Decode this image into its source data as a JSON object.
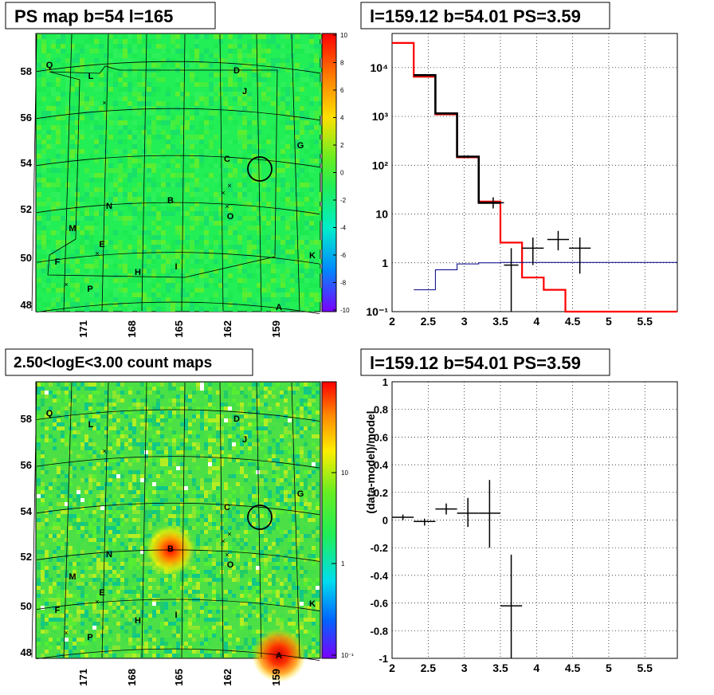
{
  "panels": {
    "ps_map": {
      "title": "PS map b=54 l=165",
      "colorbar": {
        "ticks": [
          "10",
          "8",
          "6",
          "4",
          "2",
          "0",
          "-2",
          "-4",
          "-6",
          "-8",
          "-10"
        ]
      },
      "b_ticks": [
        "58",
        "56",
        "54",
        "52",
        "50",
        "48"
      ],
      "l_ticks": [
        "171",
        "168",
        "165",
        "162",
        "159"
      ]
    },
    "count_map": {
      "title": "2.50<logE<3.00 count maps",
      "colorbar": {
        "ticks": [
          "10",
          "1",
          "10⁻¹"
        ]
      },
      "b_ticks": [
        "58",
        "56",
        "54",
        "52",
        "50",
        "48"
      ],
      "l_ticks": [
        "171",
        "168",
        "165",
        "162",
        "159"
      ]
    },
    "spectrum": {
      "title": "l=159.12 b=54.01 PS=3.59"
    },
    "residual": {
      "title": "l=159.12 b=54.01 PS=3.59"
    }
  },
  "source_labels": [
    "Q",
    "L",
    "D",
    "J",
    "G",
    "C",
    "B",
    "N",
    "O",
    "M",
    "E",
    "F",
    "I",
    "H",
    "K",
    "P",
    "A"
  ],
  "colors": {
    "data": "#000000",
    "model": "#ff0000",
    "background": "#00008b",
    "map_base": "#22ee55"
  },
  "chart_data": [
    {
      "type": "heatmap",
      "title": "PS map b=54 l=165",
      "xlabel": "",
      "ylabel": "",
      "x_ticks": [
        171,
        168,
        165,
        162,
        159
      ],
      "y_ticks": [
        58,
        56,
        54,
        52,
        50,
        48
      ],
      "zlim": [
        -10,
        10
      ],
      "colorbar_ticks": [
        10,
        8,
        6,
        4,
        2,
        0,
        -2,
        -4,
        -6,
        -8,
        -10
      ],
      "highlight_circle": {
        "l": 159.12,
        "b": 54.01
      }
    },
    {
      "type": "line",
      "title": "l=159.12 b=54.01 PS=3.59",
      "xlabel": "",
      "ylabel": "",
      "x_ticks": [
        2,
        2.5,
        3,
        3.5,
        4,
        4.5,
        5,
        5.5
      ],
      "y_scale": "log",
      "y_tick_labels": [
        "10⁻¹",
        "1",
        "10",
        "10²",
        "10³",
        "10⁴"
      ],
      "xlim": [
        2,
        5.95
      ],
      "ylim": [
        0.1,
        50000
      ],
      "grid": true,
      "series": [
        {
          "kind": "step",
          "color": "#ff0000",
          "edges": [
            2,
            2.3,
            2.6,
            2.9,
            3.2,
            3.5,
            3.8,
            4.1,
            4.4,
            5.95
          ],
          "values": [
            32000,
            6500,
            1100,
            145,
            18,
            2.6,
            0.5,
            0.28,
            0.1
          ]
        },
        {
          "kind": "step",
          "color": "#000000",
          "edges": [
            2.3,
            2.6,
            2.9,
            3.2,
            3.5
          ],
          "values": [
            7000,
            1150,
            150,
            17
          ]
        },
        {
          "kind": "step",
          "color": "#00008b",
          "edges": [
            2.3,
            2.6,
            2.9,
            3.2,
            3.5,
            5.95
          ],
          "values": [
            0.28,
            0.72,
            0.95,
            1.0,
            1.02
          ]
        },
        {
          "kind": "errorbar",
          "color": "#000000",
          "points": [
            {
              "x": 3.05,
              "y": 150,
              "xerr": 0.15,
              "ylo": 140,
              "yhi": 160
            },
            {
              "x": 3.4,
              "y": 17,
              "xerr": 0.15,
              "ylo": 13,
              "yhi": 22
            },
            {
              "x": 3.65,
              "y": 0.9,
              "xerr": 0.1,
              "ylo": 0.1,
              "yhi": 2.0
            },
            {
              "x": 3.95,
              "y": 2.0,
              "xerr": 0.15,
              "ylo": 0.9,
              "yhi": 3.3
            },
            {
              "x": 4.3,
              "y": 3.0,
              "xerr": 0.15,
              "ylo": 1.8,
              "yhi": 4.5
            },
            {
              "x": 4.6,
              "y": 2.0,
              "xerr": 0.15,
              "ylo": 0.6,
              "yhi": 3.3
            }
          ]
        }
      ]
    },
    {
      "type": "heatmap",
      "title": "2.50<logE<3.00 count maps",
      "xlabel": "",
      "ylabel": "",
      "x_ticks": [
        171,
        168,
        165,
        162,
        159
      ],
      "y_ticks": [
        58,
        56,
        54,
        52,
        50,
        48
      ],
      "z_scale": "log",
      "colorbar_ticks": [
        "10",
        "1",
        "10⁻¹"
      ],
      "hotspots": [
        {
          "label": "B",
          "l": 164.7,
          "b": 52.3
        },
        {
          "label": "A",
          "l": 159.0,
          "b": 47.9
        }
      ]
    },
    {
      "type": "scatter",
      "title": "l=159.12 b=54.01 PS=3.59",
      "xlabel": "",
      "ylabel": "(data-model)/model",
      "x_ticks": [
        2,
        2.5,
        3,
        3.5,
        4,
        4.5,
        5,
        5.5
      ],
      "y_ticks": [
        1,
        0.8,
        0.6,
        0.4,
        0.2,
        0,
        -0.2,
        -0.4,
        -0.6,
        -0.8,
        -1
      ],
      "xlim": [
        2,
        5.95
      ],
      "ylim": [
        -1,
        1
      ],
      "grid": true,
      "points": [
        {
          "x": 2.15,
          "y": 0.02,
          "xerr": 0.15,
          "ylo": 0.0,
          "yhi": 0.04
        },
        {
          "x": 2.45,
          "y": -0.01,
          "xerr": 0.15,
          "ylo": -0.04,
          "yhi": 0.01
        },
        {
          "x": 2.75,
          "y": 0.08,
          "xerr": 0.15,
          "ylo": 0.04,
          "yhi": 0.12
        },
        {
          "x": 3.05,
          "y": 0.05,
          "xerr": 0.15,
          "ylo": -0.05,
          "yhi": 0.16
        },
        {
          "x": 3.35,
          "y": 0.05,
          "xerr": 0.15,
          "ylo": -0.2,
          "yhi": 0.29
        },
        {
          "x": 3.65,
          "y": -0.62,
          "xerr": 0.15,
          "ylo": -1.0,
          "yhi": -0.25
        }
      ]
    }
  ]
}
